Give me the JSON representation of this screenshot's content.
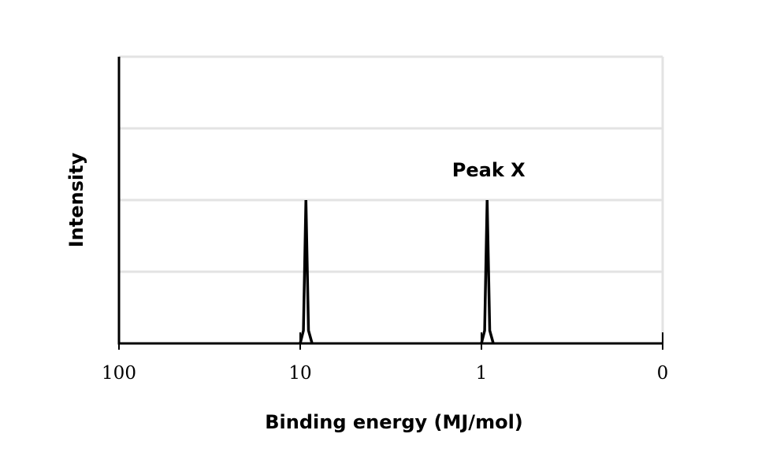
{
  "chart_data": {
    "type": "line",
    "title": "",
    "xlabel": "Binding energy (MJ/mol)",
    "ylabel": "Intensity",
    "x_scale": "log-reversed",
    "x_ticks": [
      {
        "value": 100,
        "label": "100"
      },
      {
        "value": 10,
        "label": "10"
      },
      {
        "value": 1,
        "label": "1"
      },
      {
        "value": 0,
        "label": "0"
      }
    ],
    "ylim": [
      0,
      4
    ],
    "y_gridlines": [
      1,
      2,
      3,
      4
    ],
    "grid": true,
    "legend": "none",
    "series": [
      {
        "points": [
          [
            10.0,
            0
          ],
          [
            9.6,
            0.18
          ],
          [
            9.3,
            2.0
          ],
          [
            9.0,
            0.18
          ],
          [
            8.6,
            0
          ]
        ]
      },
      {
        "points": [
          [
            1.0,
            0
          ],
          [
            0.96,
            0.18
          ],
          [
            0.93,
            2.0
          ],
          [
            0.9,
            0.18
          ],
          [
            0.86,
            0
          ]
        ]
      }
    ],
    "annotations": [
      {
        "text": "Peak X",
        "x": 0.93,
        "y": 2.0
      }
    ]
  }
}
